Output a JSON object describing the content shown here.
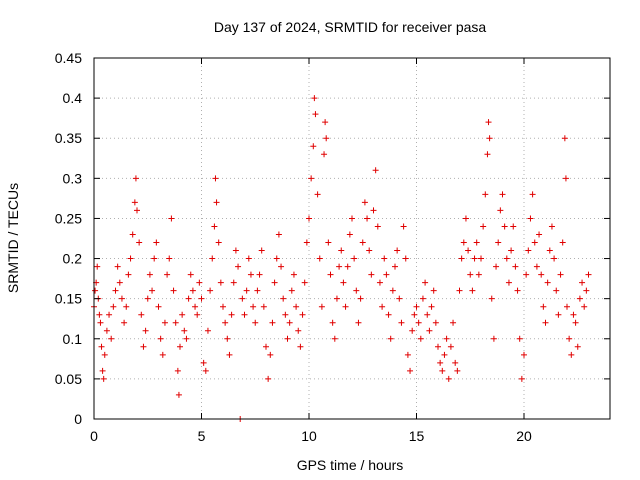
{
  "chart_data": {
    "type": "scatter",
    "title": "Day 137 of 2024, SRMTID for receiver pasa",
    "xlabel": "GPS time / hours",
    "ylabel": "SRMTID / TECUs",
    "xlim": [
      0,
      24
    ],
    "ylim": [
      0,
      0.45
    ],
    "xticks": [
      0,
      5,
      10,
      15,
      20
    ],
    "xtick_labels": [
      "0",
      "5",
      "10",
      "15",
      "20"
    ],
    "yticks": [
      0,
      0.05,
      0.1,
      0.15,
      0.2,
      0.25,
      0.3,
      0.35,
      0.4,
      0.45
    ],
    "ytick_labels": [
      "0",
      "0.05",
      "0.1",
      "0.15",
      "0.2",
      "0.25",
      "0.3",
      "0.35",
      "0.4",
      "0.45"
    ],
    "grid": true,
    "marker": "+",
    "marker_color": "#e00000",
    "series": [
      {
        "name": "SRMTID",
        "points": [
          [
            0.0,
            0.14
          ],
          [
            0.05,
            0.16
          ],
          [
            0.1,
            0.17
          ],
          [
            0.15,
            0.19
          ],
          [
            0.2,
            0.15
          ],
          [
            0.25,
            0.13
          ],
          [
            0.3,
            0.12
          ],
          [
            0.35,
            0.09
          ],
          [
            0.4,
            0.06
          ],
          [
            0.45,
            0.05
          ],
          [
            0.5,
            0.08
          ],
          [
            0.6,
            0.11
          ],
          [
            0.7,
            0.13
          ],
          [
            0.8,
            0.1
          ],
          [
            0.9,
            0.14
          ],
          [
            1.0,
            0.16
          ],
          [
            1.1,
            0.19
          ],
          [
            1.2,
            0.17
          ],
          [
            1.3,
            0.15
          ],
          [
            1.4,
            0.12
          ],
          [
            1.5,
            0.14
          ],
          [
            1.6,
            0.18
          ],
          [
            1.7,
            0.2
          ],
          [
            1.8,
            0.23
          ],
          [
            1.9,
            0.27
          ],
          [
            1.95,
            0.3
          ],
          [
            2.0,
            0.26
          ],
          [
            2.1,
            0.22
          ],
          [
            2.2,
            0.13
          ],
          [
            2.3,
            0.09
          ],
          [
            2.4,
            0.11
          ],
          [
            2.5,
            0.15
          ],
          [
            2.6,
            0.18
          ],
          [
            2.7,
            0.16
          ],
          [
            2.8,
            0.2
          ],
          [
            2.9,
            0.22
          ],
          [
            3.0,
            0.14
          ],
          [
            3.1,
            0.1
          ],
          [
            3.2,
            0.08
          ],
          [
            3.3,
            0.12
          ],
          [
            3.4,
            0.18
          ],
          [
            3.5,
            0.2
          ],
          [
            3.6,
            0.25
          ],
          [
            3.7,
            0.16
          ],
          [
            3.8,
            0.12
          ],
          [
            3.9,
            0.06
          ],
          [
            3.95,
            0.03
          ],
          [
            4.0,
            0.09
          ],
          [
            4.1,
            0.13
          ],
          [
            4.2,
            0.11
          ],
          [
            4.3,
            0.1
          ],
          [
            4.4,
            0.15
          ],
          [
            4.5,
            0.18
          ],
          [
            4.6,
            0.16
          ],
          [
            4.7,
            0.14
          ],
          [
            4.8,
            0.13
          ],
          [
            4.9,
            0.17
          ],
          [
            5.0,
            0.15
          ],
          [
            5.1,
            0.07
          ],
          [
            5.2,
            0.06
          ],
          [
            5.3,
            0.11
          ],
          [
            5.4,
            0.16
          ],
          [
            5.5,
            0.2
          ],
          [
            5.6,
            0.24
          ],
          [
            5.65,
            0.3
          ],
          [
            5.7,
            0.27
          ],
          [
            5.8,
            0.22
          ],
          [
            5.9,
            0.17
          ],
          [
            6.0,
            0.14
          ],
          [
            6.1,
            0.12
          ],
          [
            6.2,
            0.1
          ],
          [
            6.3,
            0.08
          ],
          [
            6.4,
            0.13
          ],
          [
            6.5,
            0.17
          ],
          [
            6.6,
            0.21
          ],
          [
            6.7,
            0.19
          ],
          [
            6.8,
            0.0
          ],
          [
            6.9,
            0.15
          ],
          [
            7.0,
            0.13
          ],
          [
            7.1,
            0.16
          ],
          [
            7.2,
            0.2
          ],
          [
            7.3,
            0.18
          ],
          [
            7.4,
            0.14
          ],
          [
            7.5,
            0.12
          ],
          [
            7.6,
            0.16
          ],
          [
            7.7,
            0.18
          ],
          [
            7.8,
            0.21
          ],
          [
            7.9,
            0.14
          ],
          [
            8.0,
            0.09
          ],
          [
            8.1,
            0.05
          ],
          [
            8.2,
            0.08
          ],
          [
            8.3,
            0.12
          ],
          [
            8.4,
            0.17
          ],
          [
            8.5,
            0.2
          ],
          [
            8.6,
            0.23
          ],
          [
            8.7,
            0.19
          ],
          [
            8.8,
            0.15
          ],
          [
            8.9,
            0.13
          ],
          [
            9.0,
            0.1
          ],
          [
            9.1,
            0.12
          ],
          [
            9.2,
            0.16
          ],
          [
            9.3,
            0.18
          ],
          [
            9.4,
            0.14
          ],
          [
            9.5,
            0.11
          ],
          [
            9.6,
            0.09
          ],
          [
            9.7,
            0.13
          ],
          [
            9.8,
            0.17
          ],
          [
            9.9,
            0.22
          ],
          [
            10.0,
            0.25
          ],
          [
            10.1,
            0.3
          ],
          [
            10.2,
            0.34
          ],
          [
            10.25,
            0.4
          ],
          [
            10.3,
            0.38
          ],
          [
            10.4,
            0.28
          ],
          [
            10.5,
            0.2
          ],
          [
            10.6,
            0.14
          ],
          [
            10.7,
            0.33
          ],
          [
            10.75,
            0.37
          ],
          [
            10.8,
            0.35
          ],
          [
            10.9,
            0.22
          ],
          [
            11.0,
            0.18
          ],
          [
            11.1,
            0.12
          ],
          [
            11.2,
            0.1
          ],
          [
            11.3,
            0.15
          ],
          [
            11.4,
            0.19
          ],
          [
            11.5,
            0.21
          ],
          [
            11.6,
            0.17
          ],
          [
            11.7,
            0.14
          ],
          [
            11.8,
            0.19
          ],
          [
            11.9,
            0.23
          ],
          [
            12.0,
            0.25
          ],
          [
            12.1,
            0.2
          ],
          [
            12.2,
            0.16
          ],
          [
            12.3,
            0.12
          ],
          [
            12.4,
            0.15
          ],
          [
            12.5,
            0.22
          ],
          [
            12.6,
            0.27
          ],
          [
            12.7,
            0.25
          ],
          [
            12.8,
            0.21
          ],
          [
            12.9,
            0.18
          ],
          [
            13.0,
            0.26
          ],
          [
            13.1,
            0.31
          ],
          [
            13.2,
            0.24
          ],
          [
            13.3,
            0.17
          ],
          [
            13.4,
            0.14
          ],
          [
            13.5,
            0.2
          ],
          [
            13.6,
            0.18
          ],
          [
            13.7,
            0.13
          ],
          [
            13.8,
            0.1
          ],
          [
            13.9,
            0.16
          ],
          [
            14.0,
            0.19
          ],
          [
            14.1,
            0.21
          ],
          [
            14.2,
            0.15
          ],
          [
            14.3,
            0.12
          ],
          [
            14.4,
            0.24
          ],
          [
            14.5,
            0.2
          ],
          [
            14.6,
            0.08
          ],
          [
            14.7,
            0.06
          ],
          [
            14.8,
            0.11
          ],
          [
            14.9,
            0.13
          ],
          [
            15.0,
            0.14
          ],
          [
            15.1,
            0.12
          ],
          [
            15.2,
            0.1
          ],
          [
            15.3,
            0.15
          ],
          [
            15.4,
            0.17
          ],
          [
            15.5,
            0.13
          ],
          [
            15.6,
            0.11
          ],
          [
            15.7,
            0.14
          ],
          [
            15.8,
            0.16
          ],
          [
            15.9,
            0.12
          ],
          [
            16.0,
            0.09
          ],
          [
            16.1,
            0.07
          ],
          [
            16.2,
            0.06
          ],
          [
            16.3,
            0.08
          ],
          [
            16.4,
            0.1
          ],
          [
            16.5,
            0.05
          ],
          [
            16.6,
            0.09
          ],
          [
            16.7,
            0.12
          ],
          [
            16.8,
            0.07
          ],
          [
            16.9,
            0.06
          ],
          [
            17.0,
            0.16
          ],
          [
            17.1,
            0.2
          ],
          [
            17.2,
            0.22
          ],
          [
            17.3,
            0.25
          ],
          [
            17.4,
            0.21
          ],
          [
            17.5,
            0.18
          ],
          [
            17.6,
            0.16
          ],
          [
            17.7,
            0.2
          ],
          [
            17.8,
            0.22
          ],
          [
            17.9,
            0.18
          ],
          [
            18.0,
            0.2
          ],
          [
            18.1,
            0.24
          ],
          [
            18.2,
            0.28
          ],
          [
            18.3,
            0.33
          ],
          [
            18.35,
            0.37
          ],
          [
            18.4,
            0.35
          ],
          [
            18.5,
            0.15
          ],
          [
            18.6,
            0.1
          ],
          [
            18.7,
            0.19
          ],
          [
            18.8,
            0.22
          ],
          [
            18.9,
            0.26
          ],
          [
            19.0,
            0.28
          ],
          [
            19.1,
            0.24
          ],
          [
            19.2,
            0.2
          ],
          [
            19.3,
            0.17
          ],
          [
            19.4,
            0.21
          ],
          [
            19.5,
            0.24
          ],
          [
            19.6,
            0.19
          ],
          [
            19.7,
            0.16
          ],
          [
            19.8,
            0.1
          ],
          [
            19.9,
            0.05
          ],
          [
            20.0,
            0.08
          ],
          [
            20.1,
            0.18
          ],
          [
            20.2,
            0.21
          ],
          [
            20.3,
            0.25
          ],
          [
            20.4,
            0.28
          ],
          [
            20.5,
            0.22
          ],
          [
            20.6,
            0.19
          ],
          [
            20.7,
            0.23
          ],
          [
            20.8,
            0.18
          ],
          [
            20.9,
            0.14
          ],
          [
            21.0,
            0.12
          ],
          [
            21.1,
            0.17
          ],
          [
            21.2,
            0.21
          ],
          [
            21.3,
            0.24
          ],
          [
            21.4,
            0.2
          ],
          [
            21.5,
            0.16
          ],
          [
            21.6,
            0.13
          ],
          [
            21.7,
            0.18
          ],
          [
            21.8,
            0.22
          ],
          [
            21.9,
            0.35
          ],
          [
            21.95,
            0.3
          ],
          [
            22.0,
            0.14
          ],
          [
            22.1,
            0.1
          ],
          [
            22.2,
            0.08
          ],
          [
            22.3,
            0.13
          ],
          [
            22.4,
            0.12
          ],
          [
            22.5,
            0.09
          ],
          [
            22.6,
            0.15
          ],
          [
            22.7,
            0.17
          ],
          [
            22.8,
            0.14
          ],
          [
            22.9,
            0.16
          ],
          [
            23.0,
            0.18
          ]
        ]
      }
    ]
  }
}
